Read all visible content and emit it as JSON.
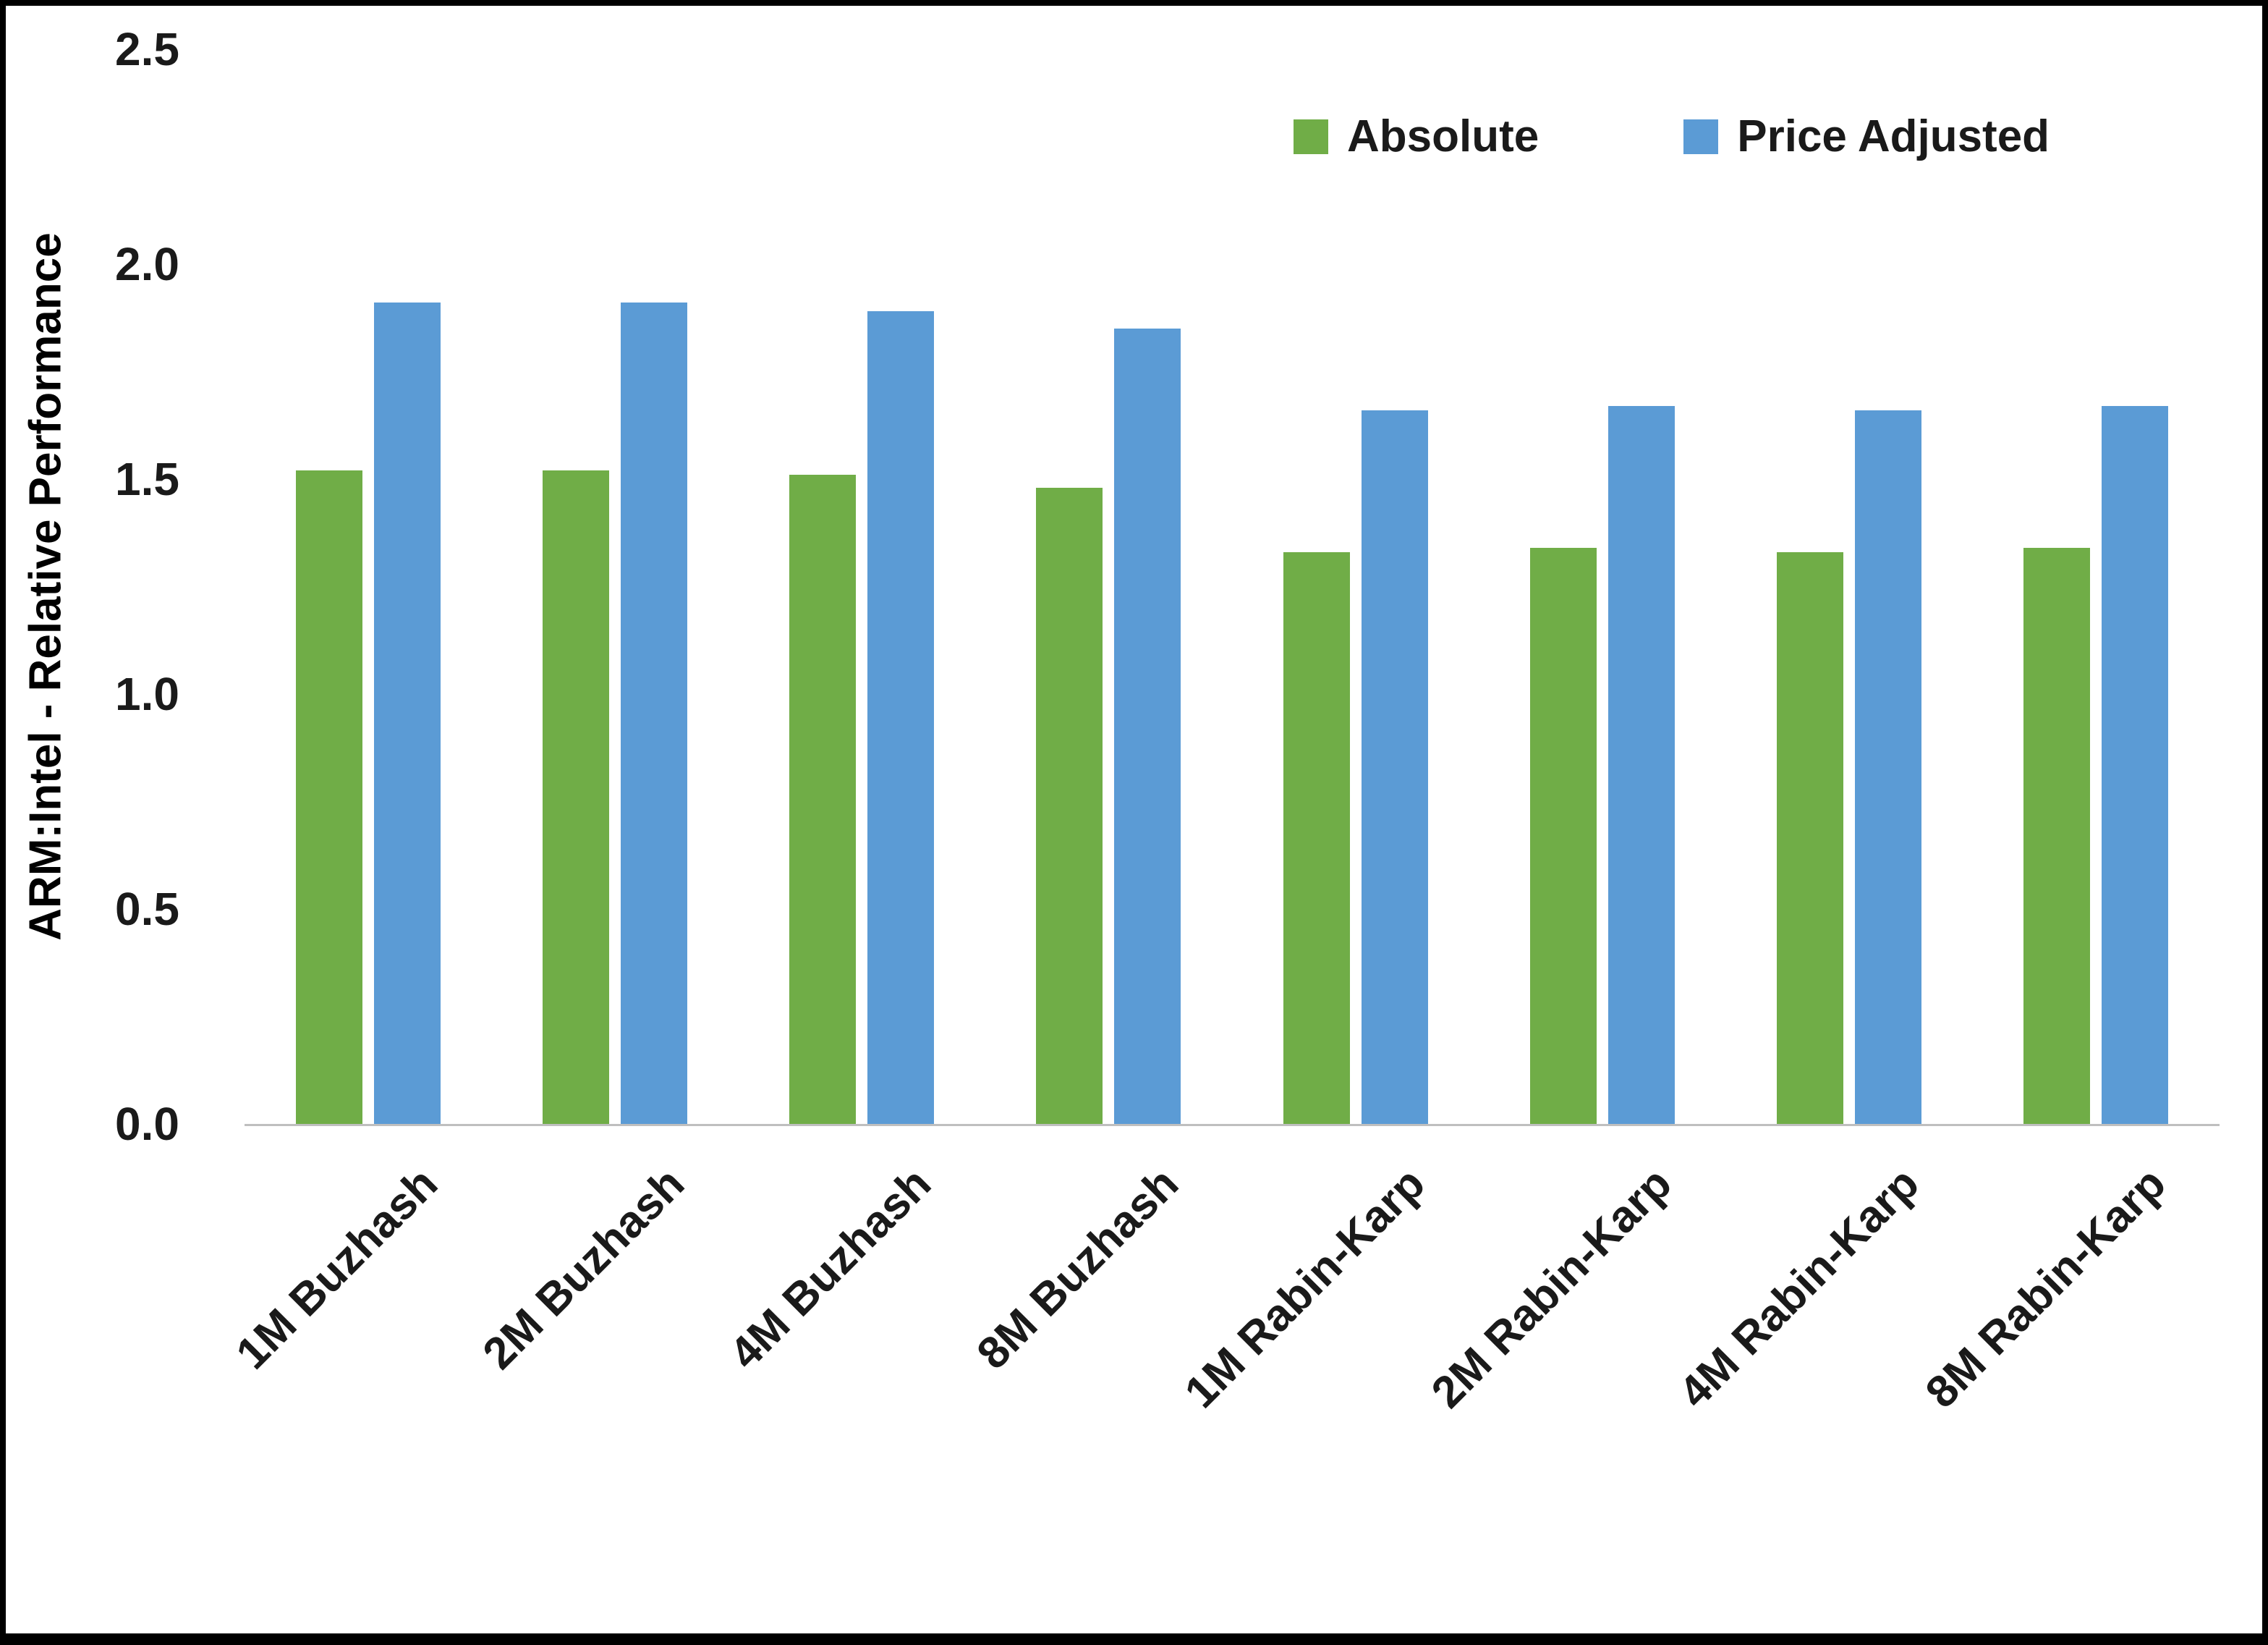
{
  "chart_data": {
    "type": "bar",
    "title": "",
    "xlabel": "",
    "ylabel": "ARM:Intel - Relative Performance",
    "ylim": [
      0,
      2.5
    ],
    "yticks": [
      0.0,
      0.5,
      1.0,
      1.5,
      2.0,
      2.5
    ],
    "grid": false,
    "legend_position": "top-right",
    "axis_line_color": "#bfbfbf",
    "categories": [
      "1M Buzhash",
      "2M Buzhash",
      "4M Buzhash",
      "8M Buzhash",
      "1M Rabin-Karp",
      "2M Rabin-Karp",
      "4M Rabin-Karp",
      "8M Rabin-Karp"
    ],
    "series": [
      {
        "name": "Absolute",
        "color": "#70ad47",
        "values": [
          1.52,
          1.52,
          1.51,
          1.48,
          1.33,
          1.34,
          1.33,
          1.34
        ]
      },
      {
        "name": "Price Adjusted",
        "color": "#5b9bd5",
        "values": [
          1.91,
          1.91,
          1.89,
          1.85,
          1.66,
          1.67,
          1.66,
          1.67
        ]
      }
    ]
  }
}
